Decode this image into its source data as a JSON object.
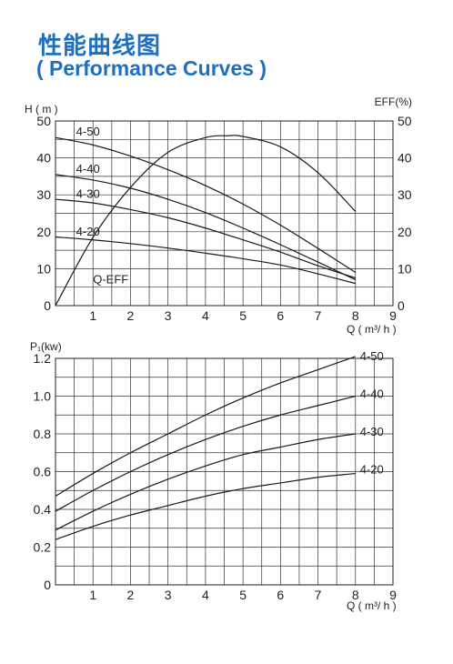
{
  "page": {
    "title_cn": "性能曲线图",
    "title_en": "( Performance Curves )"
  },
  "chart_data": [
    {
      "type": "line",
      "name": "head-efficiency",
      "ylabel": "H ( m )",
      "y2label": "EFF(%)",
      "xlabel": "Q ( m³/ h )",
      "xlim": [
        0,
        9
      ],
      "ylim": [
        0,
        50
      ],
      "y2lim": [
        0,
        50
      ],
      "xticks": [
        1,
        2,
        3,
        4,
        5,
        6,
        7,
        8,
        9
      ],
      "yticks": [
        0,
        10,
        20,
        30,
        40,
        50
      ],
      "y2ticks": [
        0,
        10,
        20,
        30,
        40,
        50
      ],
      "grid": true,
      "series": [
        {
          "name": "4-50",
          "x": [
            0,
            1,
            2,
            3,
            4,
            5,
            6,
            7,
            8
          ],
          "y": [
            45.5,
            43.5,
            40.5,
            36.8,
            32.5,
            27.5,
            21.8,
            15.5,
            9.0
          ]
        },
        {
          "name": "4-40",
          "x": [
            0,
            1,
            2,
            3,
            4,
            5,
            6,
            7,
            8
          ],
          "y": [
            35.5,
            34.0,
            31.8,
            28.8,
            25.2,
            21.0,
            16.5,
            11.8,
            7.0
          ]
        },
        {
          "name": "4-30",
          "x": [
            0,
            1,
            2,
            3,
            4,
            5,
            6,
            7,
            8
          ],
          "y": [
            28.8,
            27.8,
            26.0,
            23.8,
            21.0,
            17.8,
            14.5,
            10.8,
            7.5
          ]
        },
        {
          "name": "4-20",
          "x": [
            0,
            1,
            2,
            3,
            4,
            5,
            6,
            7,
            8
          ],
          "y": [
            18.6,
            17.8,
            16.8,
            15.6,
            14.2,
            12.7,
            11.0,
            8.6,
            6.0
          ]
        },
        {
          "name": "Q-EFF",
          "axis": "right",
          "x": [
            0,
            1,
            2,
            3,
            4,
            4.6,
            5,
            6,
            7,
            8
          ],
          "y": [
            0,
            18.5,
            32.0,
            41.5,
            45.5,
            46.0,
            45.8,
            43.0,
            36.0,
            25.5
          ]
        }
      ],
      "annotations": [
        {
          "text": "4-50",
          "x": 0.55,
          "y": 46.0
        },
        {
          "text": "4-40",
          "x": 0.55,
          "y": 36.0
        },
        {
          "text": "4-30",
          "x": 0.55,
          "y": 29.2
        },
        {
          "text": "4-20",
          "x": 0.55,
          "y": 19.0
        },
        {
          "text": "Q-EFF",
          "x": 1.0,
          "y": 6.0
        }
      ]
    },
    {
      "type": "line",
      "name": "power",
      "ylabel": "P₁(kw)",
      "xlabel": "Q ( m³/ h )",
      "xlim": [
        0,
        9
      ],
      "ylim": [
        0,
        1.2
      ],
      "xticks": [
        1,
        2,
        3,
        4,
        5,
        6,
        7,
        8,
        9
      ],
      "yticks": [
        0,
        0.2,
        0.4,
        0.6,
        0.8,
        1.0,
        1.2
      ],
      "ytick_labels": [
        "0",
        "0.2",
        "0.4",
        "0.6",
        "0.8",
        "1.0",
        "1.2"
      ],
      "grid": true,
      "series": [
        {
          "name": "4-50",
          "x": [
            0,
            1,
            2,
            3,
            4,
            5,
            6,
            7,
            8
          ],
          "y": [
            0.47,
            0.59,
            0.7,
            0.8,
            0.9,
            0.99,
            1.07,
            1.14,
            1.21
          ]
        },
        {
          "name": "4-40",
          "x": [
            0,
            1,
            2,
            3,
            4,
            5,
            6,
            7,
            8
          ],
          "y": [
            0.39,
            0.5,
            0.6,
            0.69,
            0.77,
            0.84,
            0.9,
            0.95,
            1.0
          ]
        },
        {
          "name": "4-30",
          "x": [
            0,
            1,
            2,
            3,
            4,
            5,
            6,
            7,
            8
          ],
          "y": [
            0.29,
            0.39,
            0.48,
            0.56,
            0.63,
            0.69,
            0.73,
            0.77,
            0.8
          ]
        },
        {
          "name": "4-20",
          "x": [
            0,
            1,
            2,
            3,
            4,
            5,
            6,
            7,
            8
          ],
          "y": [
            0.24,
            0.31,
            0.37,
            0.42,
            0.47,
            0.51,
            0.54,
            0.57,
            0.59
          ]
        }
      ],
      "annotations": [
        {
          "text": "4-50",
          "x": 8.12,
          "y": 1.19
        },
        {
          "text": "4-40",
          "x": 8.12,
          "y": 0.99
        },
        {
          "text": "4-30",
          "x": 8.12,
          "y": 0.79
        },
        {
          "text": "4-20",
          "x": 8.12,
          "y": 0.59
        }
      ]
    }
  ]
}
